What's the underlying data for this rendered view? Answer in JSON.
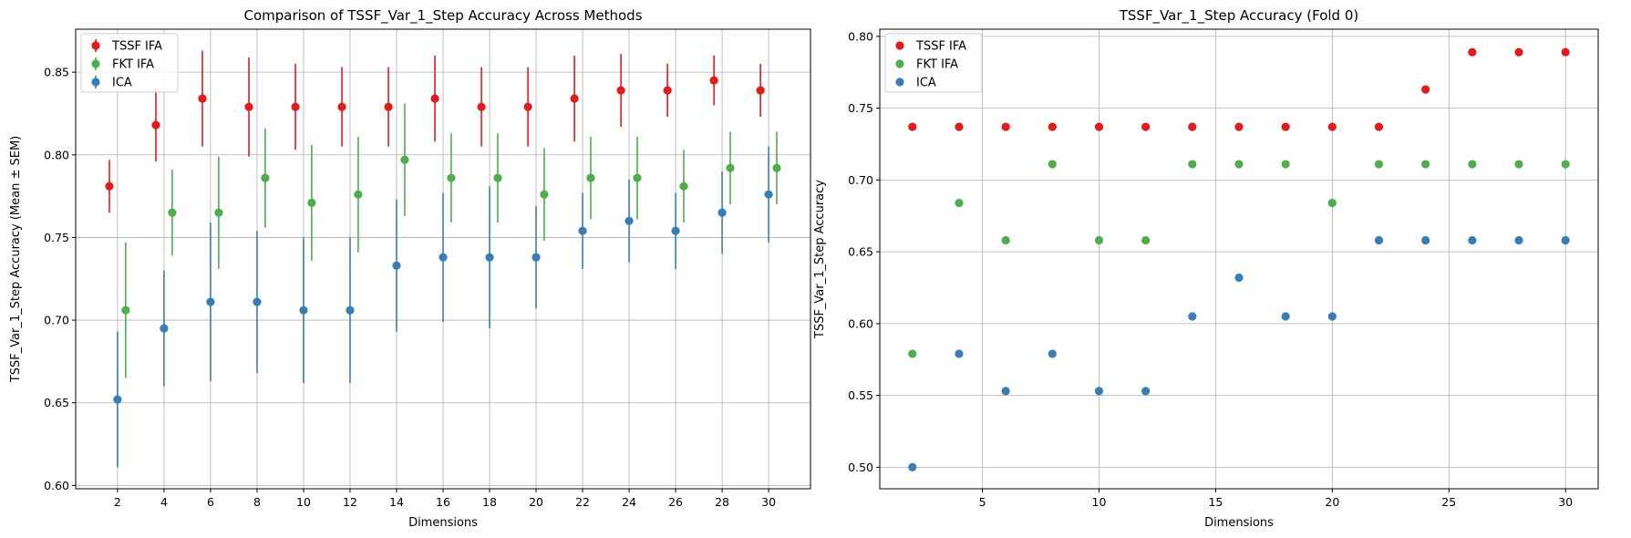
{
  "chart_data": [
    {
      "type": "scatter",
      "subtype": "errorbar",
      "title": "Comparison of TSSF_Var_1_Step Accuracy Across Methods",
      "xlabel": "Dimensions",
      "ylabel": "TSSF_Var_1_Step Accuracy (Mean ± SEM)",
      "x": [
        2,
        4,
        6,
        8,
        10,
        12,
        14,
        16,
        18,
        20,
        22,
        24,
        26,
        28,
        30
      ],
      "xticks": [
        2,
        4,
        6,
        8,
        10,
        12,
        14,
        16,
        18,
        20,
        22,
        24,
        26,
        28,
        30
      ],
      "xtick_labels": [
        "2",
        "4",
        "6",
        "8",
        "10",
        "12",
        "14",
        "16",
        "18",
        "20",
        "22",
        "24",
        "26",
        "28",
        "30"
      ],
      "xlim": [
        0.2,
        31.8
      ],
      "ylim": [
        0.598,
        0.876
      ],
      "yticks": [
        0.6,
        0.65,
        0.7,
        0.75,
        0.8,
        0.85
      ],
      "ytick_labels": [
        "0.60",
        "0.65",
        "0.70",
        "0.75",
        "0.80",
        "0.85"
      ],
      "grid": true,
      "legend": "top-left",
      "series": [
        {
          "name": "TSSF IFA",
          "color": "#e41a1c",
          "x_offset": -0.35,
          "values": [
            0.781,
            0.818,
            0.834,
            0.829,
            0.829,
            0.829,
            0.829,
            0.834,
            0.829,
            0.829,
            0.834,
            0.839,
            0.839,
            0.845,
            0.839
          ],
          "errors": [
            0.016,
            0.022,
            0.029,
            0.03,
            0.026,
            0.024,
            0.024,
            0.026,
            0.024,
            0.024,
            0.026,
            0.022,
            0.016,
            0.015,
            0.016
          ]
        },
        {
          "name": "FKT IFA",
          "color": "#4daf4a",
          "x_offset": 0.35,
          "values": [
            0.706,
            0.765,
            0.765,
            0.786,
            0.771,
            0.776,
            0.797,
            0.786,
            0.786,
            0.776,
            0.786,
            0.786,
            0.781,
            0.792,
            0.792
          ],
          "errors": [
            0.041,
            0.026,
            0.034,
            0.03,
            0.035,
            0.035,
            0.034,
            0.027,
            0.027,
            0.028,
            0.025,
            0.025,
            0.022,
            0.022,
            0.022
          ]
        },
        {
          "name": "ICA",
          "color": "#377eb8",
          "x_offset": 0,
          "values": [
            0.652,
            0.695,
            0.711,
            0.711,
            0.706,
            0.706,
            0.733,
            0.738,
            0.738,
            0.738,
            0.754,
            0.76,
            0.754,
            0.765,
            0.776
          ],
          "errors": [
            0.041,
            0.035,
            0.048,
            0.043,
            0.044,
            0.044,
            0.04,
            0.039,
            0.043,
            0.031,
            0.023,
            0.025,
            0.023,
            0.025,
            0.029
          ]
        }
      ]
    },
    {
      "type": "scatter",
      "title": "TSSF_Var_1_Step Accuracy (Fold 0)",
      "xlabel": "Dimensions",
      "ylabel": "TSSF_Var_1_Step Accuracy",
      "x": [
        2,
        4,
        6,
        8,
        10,
        12,
        14,
        16,
        18,
        20,
        22,
        24,
        26,
        28,
        30
      ],
      "xticks": [
        5,
        10,
        15,
        20,
        25,
        30
      ],
      "xtick_labels": [
        "5",
        "10",
        "15",
        "20",
        "25",
        "30"
      ],
      "xlim": [
        0.6,
        31.4
      ],
      "ylim": [
        0.485,
        0.805
      ],
      "yticks": [
        0.5,
        0.55,
        0.6,
        0.65,
        0.7,
        0.75,
        0.8
      ],
      "ytick_labels": [
        "0.50",
        "0.55",
        "0.60",
        "0.65",
        "0.70",
        "0.75",
        "0.80"
      ],
      "grid": true,
      "legend": "top-left",
      "series": [
        {
          "name": "TSSF IFA",
          "color": "#e41a1c",
          "values": [
            0.737,
            0.737,
            0.737,
            0.737,
            0.737,
            0.737,
            0.737,
            0.737,
            0.737,
            0.737,
            0.737,
            0.763,
            0.789,
            0.789,
            0.789
          ]
        },
        {
          "name": "FKT IFA",
          "color": "#4daf4a",
          "values": [
            0.579,
            0.684,
            0.658,
            0.711,
            0.658,
            0.658,
            0.711,
            0.711,
            0.711,
            0.684,
            0.711,
            0.711,
            0.711,
            0.711,
            0.711
          ]
        },
        {
          "name": "ICA",
          "color": "#377eb8",
          "values": [
            0.5,
            0.579,
            0.553,
            0.579,
            0.553,
            0.553,
            0.605,
            0.632,
            0.605,
            0.605,
            0.658,
            0.658,
            0.658,
            0.658,
            0.658
          ]
        }
      ]
    }
  ]
}
